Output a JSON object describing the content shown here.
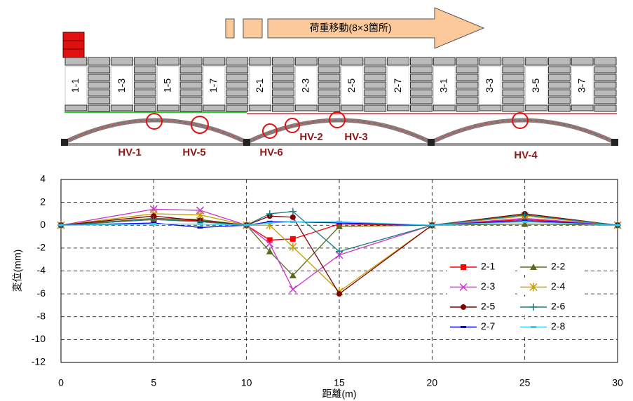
{
  "diagram": {
    "banner": "荷重移動(8×3箇所)",
    "lanes": [
      "1-1",
      "1-3",
      "1-5",
      "1-7",
      "2-1",
      "2-3",
      "2-5",
      "2-7",
      "3-1",
      "3-3",
      "3-5",
      "3-7"
    ],
    "points": [
      "HV-1",
      "HV-5",
      "HV-6",
      "HV-2",
      "HV-3",
      "HV-4"
    ]
  },
  "chart_data": {
    "type": "line",
    "xlabel": "距離(m)",
    "ylabel": "変位(mm)",
    "x": [
      0,
      5,
      7.5,
      10,
      11.25,
      12.5,
      15,
      20,
      25,
      30
    ],
    "xlim": [
      0,
      30
    ],
    "xticks": [
      0,
      5,
      10,
      15,
      20,
      25,
      30
    ],
    "ylim": [
      -12,
      4
    ],
    "yticks": [
      -12,
      -10,
      -8,
      -6,
      -4,
      -2,
      0,
      2,
      4
    ],
    "grid": true,
    "series": [
      {
        "name": "2-1",
        "color": "#ff0000",
        "marker": "square",
        "values": [
          0,
          0.5,
          0.4,
          0,
          -1.3,
          -1.2,
          0.1,
          0,
          0.5,
          0
        ]
      },
      {
        "name": "2-2",
        "color": "#5a6b1e",
        "marker": "triangle",
        "values": [
          0,
          0.6,
          0.5,
          0,
          -2.3,
          -4.4,
          -0.1,
          0,
          0.1,
          0
        ]
      },
      {
        "name": "2-3",
        "color": "#cc33cc",
        "marker": "x",
        "values": [
          0,
          1.4,
          1.3,
          0,
          -1.6,
          -5.6,
          -2.6,
          0,
          0.6,
          0
        ]
      },
      {
        "name": "2-4",
        "color": "#c8a000",
        "marker": "star",
        "values": [
          0,
          1.0,
          0.9,
          0,
          0.0,
          -1.9,
          -5.8,
          0,
          0.8,
          0
        ]
      },
      {
        "name": "2-5",
        "color": "#800000",
        "marker": "circle",
        "values": [
          0,
          0.8,
          0.4,
          0,
          0.8,
          0.7,
          -6.0,
          0,
          1.0,
          0
        ]
      },
      {
        "name": "2-6",
        "color": "#1a7f7f",
        "marker": "plus",
        "values": [
          0,
          0.5,
          0.3,
          0,
          1.0,
          1.2,
          -2.3,
          0,
          0.9,
          0
        ]
      },
      {
        "name": "2-7",
        "color": "#0000ee",
        "marker": "dash",
        "values": [
          0,
          0.2,
          -0.2,
          0,
          0.3,
          0.3,
          0.2,
          0,
          0.4,
          0
        ]
      },
      {
        "name": "2-8",
        "color": "#33ccee",
        "marker": "dash",
        "values": [
          0,
          0.1,
          0.1,
          0,
          0.2,
          0.3,
          0.3,
          0,
          0.3,
          0
        ]
      }
    ]
  }
}
